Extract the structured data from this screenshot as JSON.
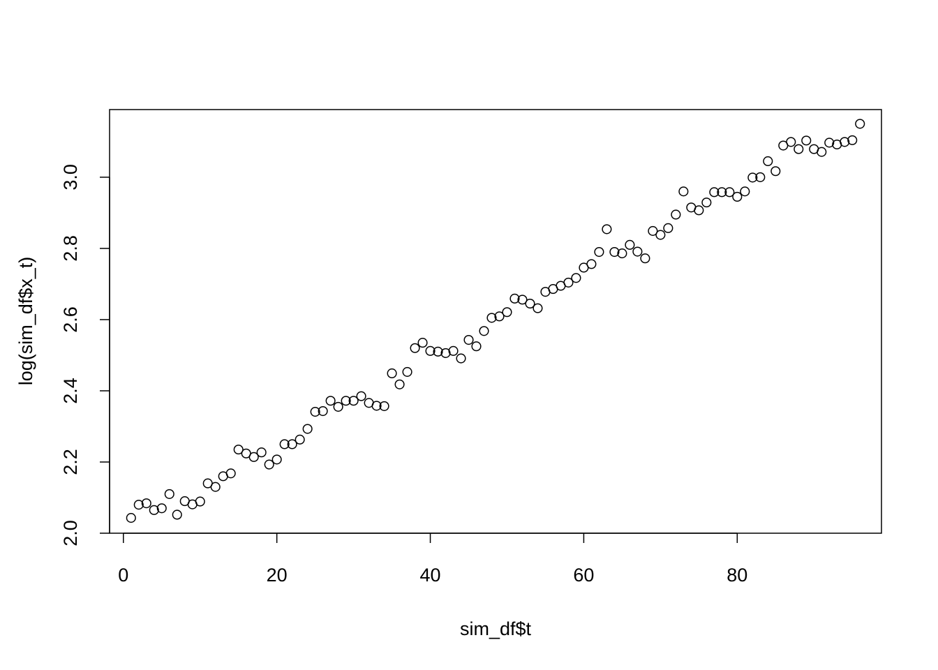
{
  "chart_data": {
    "type": "scatter",
    "title": "",
    "xlabel": "sim_df$t",
    "ylabel": "log(sim_df$x_t)",
    "xlim": [
      -1.8,
      98.8
    ],
    "ylim": [
      2.0,
      3.19
    ],
    "xticks": [
      0,
      20,
      40,
      60,
      80
    ],
    "yticks": [
      2.0,
      2.2,
      2.4,
      2.6,
      2.8,
      3.0
    ],
    "xtick_labels": [
      "0",
      "20",
      "40",
      "60",
      "80"
    ],
    "ytick_labels": [
      "2.0",
      "2.2",
      "2.4",
      "2.6",
      "2.8",
      "3.0"
    ],
    "grid": false,
    "legend": "none",
    "marker": "open-circle",
    "series": [
      {
        "x": [
          1,
          2,
          3,
          4,
          5,
          6,
          7,
          8,
          9,
          10,
          11,
          12,
          13,
          14,
          15,
          16,
          17,
          18,
          19,
          20,
          21,
          22,
          23,
          24,
          25,
          26,
          27,
          28,
          29,
          30,
          31,
          32,
          33,
          34,
          35,
          36,
          37,
          38,
          39,
          40,
          41,
          42,
          43,
          44,
          45,
          46,
          47,
          48,
          49,
          50,
          51,
          52,
          53,
          54,
          55,
          56,
          57,
          58,
          59,
          60,
          61,
          62,
          63,
          64,
          65,
          66,
          67,
          68,
          69,
          70,
          71,
          72,
          73,
          74,
          75,
          76,
          77,
          78,
          79,
          80,
          81,
          82,
          83,
          84,
          85,
          86,
          87,
          88,
          89,
          90,
          91,
          92,
          93,
          94,
          95,
          96
        ],
        "y": [
          2.043,
          2.08,
          2.084,
          2.065,
          2.07,
          2.11,
          2.052,
          2.09,
          2.081,
          2.089,
          2.14,
          2.13,
          2.16,
          2.168,
          2.235,
          2.224,
          2.214,
          2.227,
          2.193,
          2.207,
          2.25,
          2.25,
          2.263,
          2.293,
          2.341,
          2.343,
          2.372,
          2.355,
          2.372,
          2.372,
          2.385,
          2.366,
          2.358,
          2.357,
          2.449,
          2.418,
          2.453,
          2.52,
          2.535,
          2.512,
          2.51,
          2.506,
          2.512,
          2.491,
          2.543,
          2.525,
          2.568,
          2.605,
          2.609,
          2.621,
          2.659,
          2.656,
          2.645,
          2.632,
          2.678,
          2.686,
          2.695,
          2.704,
          2.717,
          2.746,
          2.756,
          2.79,
          2.854,
          2.79,
          2.786,
          2.81,
          2.791,
          2.772,
          2.849,
          2.838,
          2.857,
          2.895,
          2.96,
          2.915,
          2.907,
          2.929,
          2.958,
          2.958,
          2.958,
          2.945,
          2.96,
          2.999,
          3.0,
          3.045,
          3.017,
          3.089,
          3.099,
          3.079,
          3.103,
          3.079,
          3.071,
          3.097,
          3.092,
          3.099,
          3.104,
          3.15
        ]
      }
    ]
  }
}
